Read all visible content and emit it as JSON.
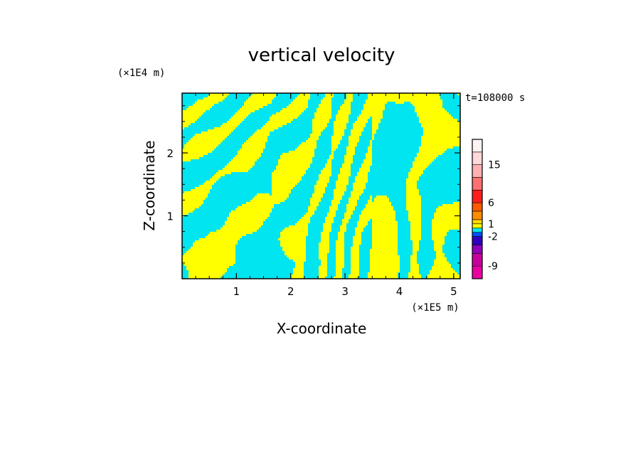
{
  "chart_data": {
    "type": "heatmap",
    "title": "vertical velocity",
    "xlabel": "X-coordinate",
    "ylabel": "Z-coordinate",
    "x_unit": "(×1E5 m)",
    "y_unit": "(×1E4 m)",
    "time_label": "t=108000 s",
    "xlim": [
      0,
      5.12
    ],
    "ylim": [
      0,
      2.95
    ],
    "x_ticks": [
      "1",
      "2",
      "3",
      "4",
      "5"
    ],
    "y_ticks": [
      "1",
      "2"
    ],
    "x_tick_values": [
      1,
      2,
      3,
      4,
      5
    ],
    "y_tick_values": [
      1,
      2
    ],
    "dominant_colors": {
      "positive_small": "#ffff00",
      "negative_small": "#00e5f0"
    },
    "colorbar": {
      "labels": [
        "15",
        "6",
        "1",
        "-2",
        "-9"
      ],
      "label_values": [
        15,
        6,
        1,
        -2,
        -9
      ],
      "levels": [
        -12,
        -9,
        -6,
        -4,
        -2,
        -1,
        0,
        1,
        2,
        4,
        6,
        9,
        12,
        15,
        18,
        21
      ],
      "colors": [
        "#e800a0",
        "#c8009c",
        "#9000b8",
        "#3000c0",
        "#0050ff",
        "#00e5f0",
        "#ffff00",
        "#ffd700",
        "#ff8c00",
        "#ff5a00",
        "#ff1e1e",
        "#ff7070",
        "#ffb0b0",
        "#ffd8d8",
        "#fff2f2"
      ]
    }
  }
}
